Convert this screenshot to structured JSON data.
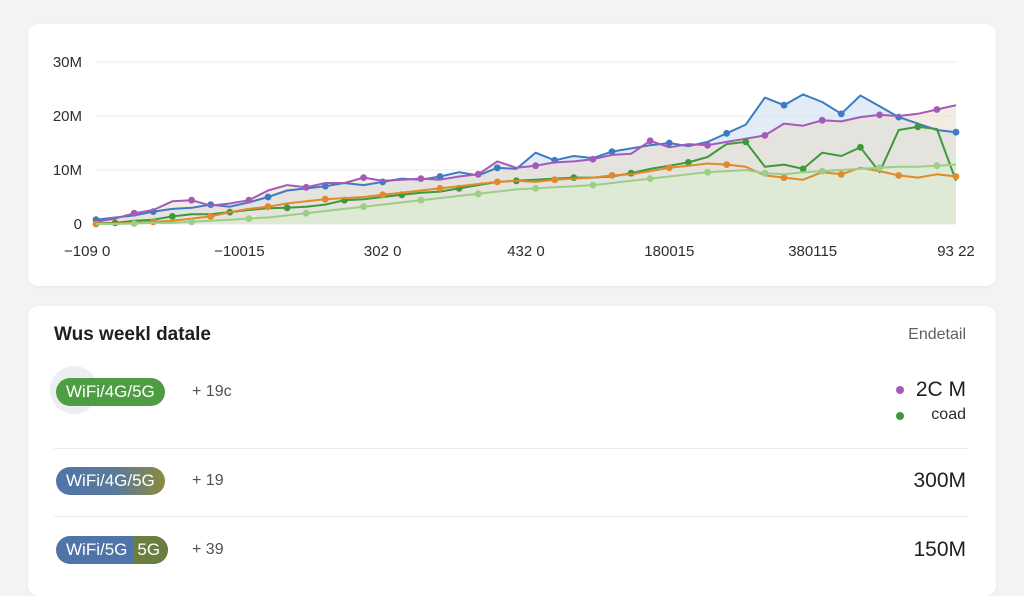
{
  "chart": {
    "y_ticks": [
      "30M",
      "20M",
      "10M",
      "0"
    ],
    "x_ticks": [
      "−109 0",
      "−10015",
      "302 0",
      "432 0",
      "180015",
      "380115",
      "93 22"
    ],
    "colors": {
      "blue": "#3f7bc4",
      "purple": "#a45ab9",
      "green": "#3c9a3a",
      "orange": "#e08a2c",
      "light_green": "#9bcf86",
      "area_blue": "#c9ddf0",
      "area_tan": "#e7dccb",
      "area_green": "#dcebd2"
    }
  },
  "chart_data": {
    "type": "line",
    "y_tick_labels": [
      "0",
      "10M",
      "20M",
      "30M"
    ],
    "ylim": [
      0,
      30
    ],
    "x_tick_labels": [
      "−109 0",
      "−10015",
      "302 0",
      "432 0",
      "180015",
      "380115",
      "93 22"
    ],
    "grid": true,
    "series": [
      {
        "color": "blue",
        "values": [
          0.8,
          1.2,
          1.6,
          2.3,
          2.8,
          3.0,
          3.6,
          3.2,
          4.0,
          5.0,
          6.2,
          6.6,
          7.0,
          7.6,
          7.2,
          7.8,
          8.4,
          8.2,
          8.8,
          9.6,
          9.0,
          10.4,
          10.2,
          13.2,
          11.8,
          12.6,
          12.2,
          13.4,
          14.0,
          14.6,
          15.0,
          14.4,
          15.2,
          16.8,
          18.4,
          23.4,
          22.0,
          24.0,
          22.6,
          20.4,
          23.8,
          21.8,
          19.8,
          18.6,
          17.4,
          17.0
        ]
      },
      {
        "color": "purple",
        "values": [
          0.4,
          1.0,
          2.0,
          2.6,
          4.2,
          4.4,
          3.4,
          3.8,
          4.4,
          6.2,
          7.2,
          6.8,
          7.6,
          7.6,
          8.6,
          8.0,
          8.2,
          8.4,
          8.2,
          8.8,
          9.2,
          11.6,
          10.4,
          10.8,
          11.4,
          11.6,
          12.0,
          12.8,
          13.0,
          15.4,
          14.2,
          14.8,
          14.6,
          15.2,
          15.8,
          16.4,
          18.6,
          18.2,
          19.2,
          19.0,
          19.8,
          20.2,
          20.0,
          20.4,
          21.2,
          22.0
        ]
      },
      {
        "color": "green",
        "values": [
          0.1,
          0.2,
          0.6,
          0.8,
          1.4,
          1.8,
          1.8,
          2.2,
          2.6,
          2.9,
          3.0,
          3.2,
          3.6,
          4.4,
          4.6,
          5.0,
          5.4,
          5.8,
          6.0,
          6.6,
          7.2,
          7.8,
          8.0,
          8.2,
          8.4,
          8.6,
          8.6,
          8.8,
          9.4,
          10.2,
          10.8,
          11.4,
          12.4,
          14.8,
          15.2,
          10.6,
          11.0,
          10.2,
          13.2,
          12.6,
          14.2,
          9.6,
          17.4,
          18.0,
          17.6,
          8.0
        ]
      },
      {
        "color": "orange",
        "values": [
          0.0,
          0.1,
          0.2,
          0.4,
          0.6,
          1.0,
          1.4,
          2.2,
          2.8,
          3.2,
          3.8,
          4.2,
          4.6,
          4.8,
          5.0,
          5.4,
          5.8,
          6.2,
          6.6,
          7.0,
          7.4,
          7.8,
          8.0,
          7.8,
          8.2,
          8.4,
          8.6,
          9.0,
          9.2,
          9.8,
          10.4,
          10.8,
          11.2,
          11.0,
          10.6,
          9.0,
          8.6,
          8.2,
          9.6,
          9.2,
          10.4,
          9.8,
          9.0,
          8.6,
          9.2,
          8.8
        ]
      },
      {
        "color": "light_green",
        "values": [
          0.0,
          0.0,
          0.1,
          0.2,
          0.2,
          0.4,
          0.6,
          0.8,
          1.0,
          1.2,
          1.6,
          2.0,
          2.4,
          2.8,
          3.2,
          3.6,
          4.0,
          4.4,
          4.8,
          5.2,
          5.6,
          6.0,
          6.4,
          6.6,
          6.8,
          7.0,
          7.2,
          7.6,
          8.0,
          8.4,
          8.8,
          9.2,
          9.6,
          9.8,
          10.0,
          9.4,
          9.2,
          9.6,
          9.8,
          10.0,
          10.2,
          10.4,
          10.6,
          10.6,
          10.8,
          11.0
        ]
      }
    ]
  },
  "list": {
    "title": "Wus weekl datale",
    "link": "Endetail",
    "rows": [
      {
        "badge": "WiFi/4G/5G",
        "delta": "+ 19с",
        "value": "2С M",
        "sub": "coad",
        "badge_color": "#4e9d43"
      },
      {
        "badge": "WiFi/4G/5G",
        "delta": "+ 19",
        "value": "300M",
        "badge_color_a": "#4f74a8",
        "badge_color_b": "#8d8a3c"
      },
      {
        "badge_a": "WiFi/5G",
        "badge_b": "5G",
        "delta": "+ 39",
        "value": "150M",
        "badge_color_a": "#4f74a8",
        "badge_color_b": "#6a7f3f"
      }
    ],
    "legend": {
      "dot_1": "#a45ab9",
      "dot_2": "#3c9a3a"
    }
  }
}
